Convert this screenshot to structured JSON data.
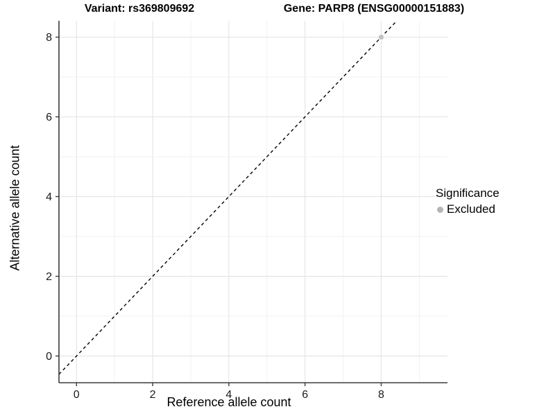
{
  "titles": {
    "left": "Variant: rs369809692",
    "right": "Gene: PARP8 (ENSG00000151883)"
  },
  "axes": {
    "x_label": "Reference allele count",
    "y_label": "Alternative allele count"
  },
  "legend": {
    "title": "Significance",
    "entries": [
      {
        "label": "Excluded",
        "color": "#b5b5b5"
      }
    ]
  },
  "chart_data": {
    "type": "scatter",
    "title": "Variant: rs369809692  /  Gene: PARP8 (ENSG00000151883)",
    "xlabel": "Reference allele count",
    "ylabel": "Alternative allele count",
    "xticks": [
      0,
      2,
      4,
      6,
      8
    ],
    "yticks": [
      0,
      2,
      4,
      6,
      8
    ],
    "xlim": [
      -0.46,
      9.74
    ],
    "ylim": [
      -0.67,
      8.41
    ],
    "grid": {
      "on": true,
      "major_every": 2,
      "minor_every": 1
    },
    "identity_line": {
      "equation": "y = x",
      "style": "dashed",
      "color": "#000000"
    },
    "series": [
      {
        "name": "Excluded",
        "color": "#c2c2c2",
        "points": [
          [
            8,
            8
          ]
        ]
      }
    ],
    "legend_position": "right",
    "colors": {
      "grid_major": "#e5e5e5",
      "grid_minor": "#f1f1f1",
      "axis_line": "#3a3a3a",
      "tick_mark": "#3a3a3a",
      "tick_label": "#1a1a1a"
    }
  }
}
